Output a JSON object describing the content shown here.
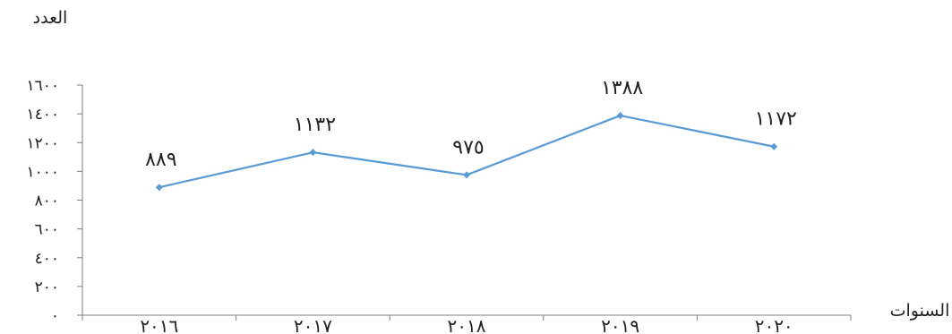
{
  "chart_data": {
    "type": "line",
    "title": "",
    "ylabel": "العدد",
    "xlabel": "السنوات",
    "categories": [
      "٢٠١٦",
      "٢٠١٧",
      "٢٠١٨",
      "٢٠١٩",
      "٢٠٢٠"
    ],
    "series": [
      {
        "values": [
          889,
          1132,
          975,
          1388,
          1172
        ],
        "data_labels": [
          "٨٨٩",
          "١١٣٢",
          "٩٧٥",
          "١٣٨٨",
          "١١٧٢"
        ]
      }
    ],
    "ylim": [
      0,
      1600
    ],
    "yticks": [
      0,
      200,
      400,
      600,
      800,
      1000,
      1200,
      1400,
      1600
    ],
    "ytick_labels": [
      "٠",
      "٢٠٠",
      "٤٠٠",
      "٦٠٠",
      "٨٠٠",
      "١٠٠٠",
      "١٢٠٠",
      "١٤٠٠",
      "١٦٠٠"
    ],
    "grid": false,
    "legend": "none",
    "line_color": "#5B9BD5",
    "axis_color": "#7f7f7f"
  }
}
